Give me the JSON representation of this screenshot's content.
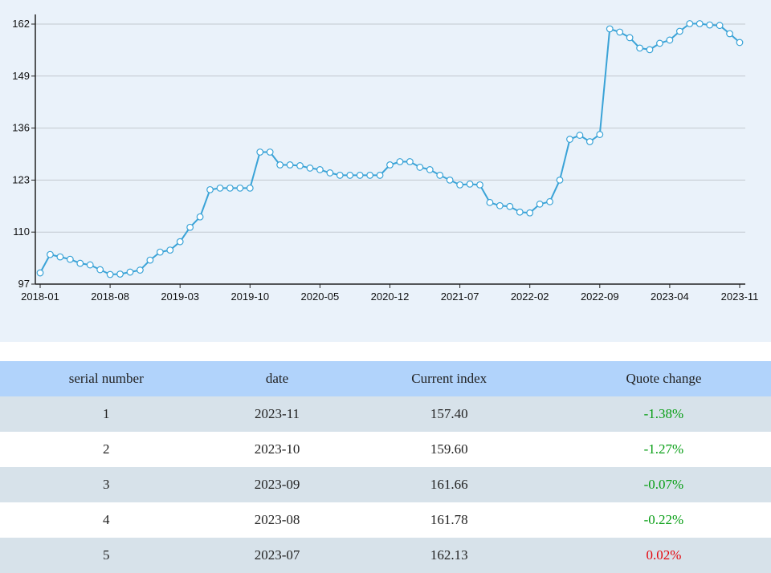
{
  "chart_data": {
    "type": "line",
    "title": "",
    "xlabel": "",
    "ylabel": "",
    "ylim": [
      97,
      162
    ],
    "yticks": [
      "97",
      "110",
      "123",
      "136",
      "149",
      "162"
    ],
    "xtick_labels": [
      "2018-01",
      "2018-08",
      "2019-03",
      "2019-10",
      "2020-05",
      "2020-12",
      "2021-07",
      "2022-02",
      "2022-09",
      "2023-04",
      "2023-11"
    ],
    "grid": "horizontal",
    "line_color": "#3aa3d7",
    "marker_fill": "#ffffff",
    "x": [
      "2018-01",
      "2018-02",
      "2018-03",
      "2018-04",
      "2018-05",
      "2018-06",
      "2018-07",
      "2018-08",
      "2018-09",
      "2018-10",
      "2018-11",
      "2018-12",
      "2019-01",
      "2019-02",
      "2019-03",
      "2019-04",
      "2019-05",
      "2019-06",
      "2019-07",
      "2019-08",
      "2019-09",
      "2019-10",
      "2019-11",
      "2019-12",
      "2020-01",
      "2020-02",
      "2020-03",
      "2020-04",
      "2020-05",
      "2020-06",
      "2020-07",
      "2020-08",
      "2020-09",
      "2020-10",
      "2020-11",
      "2020-12",
      "2021-01",
      "2021-02",
      "2021-03",
      "2021-04",
      "2021-05",
      "2021-06",
      "2021-07",
      "2021-08",
      "2021-09",
      "2021-10",
      "2021-11",
      "2021-12",
      "2022-01",
      "2022-02",
      "2022-03",
      "2022-04",
      "2022-05",
      "2022-06",
      "2022-07",
      "2022-08",
      "2022-09",
      "2022-10",
      "2022-11",
      "2022-12",
      "2023-01",
      "2023-02",
      "2023-03",
      "2023-04",
      "2023-05",
      "2023-06",
      "2023-07",
      "2023-08",
      "2023-09",
      "2023-10",
      "2023-11"
    ],
    "values": [
      99.8,
      104.4,
      103.8,
      103.2,
      102.2,
      101.8,
      100.6,
      99.4,
      99.5,
      100.0,
      100.5,
      103.0,
      105.0,
      105.5,
      107.6,
      111.2,
      113.8,
      120.6,
      121.0,
      121.0,
      121.0,
      121.0,
      130.0,
      130.0,
      126.8,
      126.8,
      126.6,
      126.0,
      125.6,
      124.8,
      124.2,
      124.2,
      124.2,
      124.2,
      124.2,
      126.8,
      127.6,
      127.6,
      126.2,
      125.6,
      124.2,
      123.0,
      121.8,
      122.0,
      121.8,
      117.4,
      116.6,
      116.4,
      115.0,
      114.8,
      117.0,
      117.6,
      123.0,
      133.2,
      134.2,
      132.6,
      134.4,
      160.8,
      160.0,
      158.6,
      156.0,
      155.6,
      157.2,
      158.0,
      160.2,
      162.1,
      162.1,
      161.78,
      161.66,
      159.6,
      157.4
    ]
  },
  "table": {
    "headers": [
      "serial number",
      "date",
      "Current index",
      "Quote change"
    ],
    "rows": [
      {
        "serial": "1",
        "date": "2023-11",
        "index": "157.40",
        "change": "-1.38%",
        "dir": "neg"
      },
      {
        "serial": "2",
        "date": "2023-10",
        "index": "159.60",
        "change": "-1.27%",
        "dir": "neg"
      },
      {
        "serial": "3",
        "date": "2023-09",
        "index": "161.66",
        "change": "-0.07%",
        "dir": "neg"
      },
      {
        "serial": "4",
        "date": "2023-08",
        "index": "161.78",
        "change": "-0.22%",
        "dir": "neg"
      },
      {
        "serial": "5",
        "date": "2023-07",
        "index": "162.13",
        "change": "0.02%",
        "dir": "pos"
      }
    ]
  }
}
